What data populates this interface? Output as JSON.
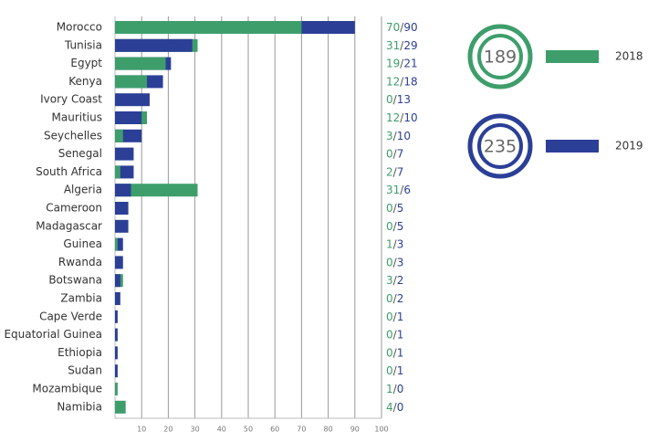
{
  "chart_data": {
    "type": "overlapping-bar",
    "categories": [
      "Morocco",
      "Tunisia",
      "Egypt",
      "Kenya",
      "Ivory Coast",
      "Mauritius",
      "Seychelles",
      "Senegal",
      "South Africa",
      "Algeria",
      "Cameroon",
      "Madagascar",
      "Guinea",
      "Rwanda",
      "Botswana",
      "Zambia",
      "Cape Verde",
      "Equatorial Guinea",
      "Ethiopia",
      "Sudan",
      "Mozambique",
      "Namibia"
    ],
    "series": [
      {
        "name": "2018",
        "color": "#3e9e6b",
        "total": 189,
        "values": [
          70,
          31,
          19,
          12,
          0,
          12,
          3,
          0,
          2,
          31,
          0,
          0,
          1,
          0,
          3,
          0,
          0,
          0,
          0,
          0,
          1,
          4
        ]
      },
      {
        "name": "2019",
        "color": "#2b3f97",
        "total": 235,
        "values": [
          90,
          29,
          21,
          18,
          13,
          10,
          10,
          7,
          7,
          6,
          5,
          5,
          3,
          3,
          2,
          2,
          1,
          1,
          1,
          1,
          0,
          0
        ]
      }
    ],
    "value_separator": "/",
    "xlim": [
      0,
      100
    ],
    "xticks": [
      10,
      20,
      30,
      40,
      50,
      60,
      70,
      80,
      90,
      100
    ],
    "grid": true
  }
}
